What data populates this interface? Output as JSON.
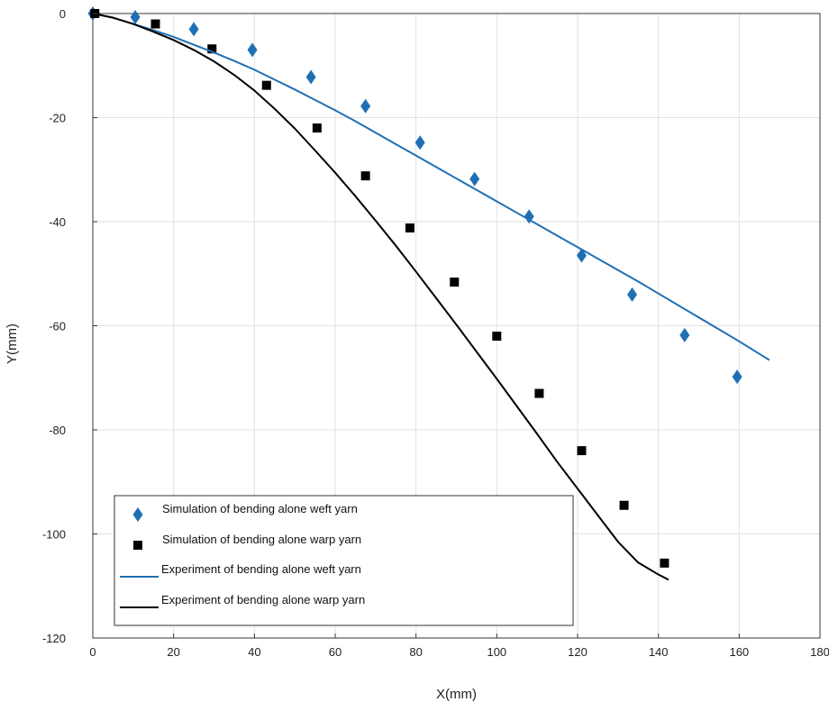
{
  "chart_data": {
    "type": "line",
    "title": "",
    "xlabel": "X(mm)",
    "ylabel": "Y(mm)",
    "xlim": [
      0,
      180
    ],
    "ylim": [
      -120,
      0
    ],
    "x_ticks": [
      0,
      20,
      40,
      60,
      80,
      100,
      120,
      140,
      160,
      180
    ],
    "y_ticks": [
      0,
      -20,
      -40,
      -60,
      -80,
      -100,
      -120
    ],
    "grid": true,
    "legend_position": "bottom-left",
    "series": [
      {
        "name": "Simulation of bending alone weft yarn",
        "kind": "scatter",
        "marker": "diamond",
        "color": "#1f6fb5",
        "x": [
          0,
          10.5,
          25,
          39.5,
          54,
          67.5,
          81,
          94.5,
          108,
          121,
          133.5,
          146.5,
          159.5
        ],
        "y": [
          0,
          -0.7,
          -3,
          -7,
          -12.2,
          -17.8,
          -24.8,
          -31.8,
          -39,
          -46.5,
          -54,
          -61.8,
          -69.8
        ]
      },
      {
        "name": "Simulation of bending alone warp yarn",
        "kind": "scatter",
        "marker": "square",
        "color": "#000000",
        "x": [
          0.5,
          15.5,
          29.5,
          43,
          55.5,
          67.5,
          78.5,
          89.5,
          100,
          110.5,
          121,
          131.5,
          141.5
        ],
        "y": [
          0,
          -2,
          -6.8,
          -13.8,
          -22,
          -31.2,
          -41.2,
          -51.6,
          -62,
          -73,
          -84,
          -94.5,
          -105.6
        ]
      },
      {
        "name": "Experiment of bending alone weft yarn",
        "kind": "line",
        "color": "#1f6fb5",
        "x": [
          0,
          5,
          10,
          15,
          20,
          25,
          30,
          35,
          40,
          45,
          50,
          55,
          60,
          65,
          70,
          75,
          80,
          85,
          90,
          95,
          100,
          105,
          110,
          115,
          120,
          125,
          130,
          135,
          140,
          145,
          150,
          155,
          160,
          165,
          167.5
        ],
        "y": [
          0,
          -0.8,
          -2,
          -3.2,
          -4.5,
          -6,
          -7.5,
          -9.1,
          -10.8,
          -12.7,
          -14.6,
          -16.6,
          -18.6,
          -20.7,
          -22.9,
          -25.1,
          -27.3,
          -29.5,
          -31.7,
          -33.9,
          -36.1,
          -38.3,
          -40.5,
          -42.7,
          -44.9,
          -47.1,
          -49.3,
          -51.5,
          -53.8,
          -56.1,
          -58.4,
          -60.7,
          -63,
          -65.4,
          -66.6
        ]
      },
      {
        "name": "Experiment of bending alone warp yarn",
        "kind": "line",
        "color": "#000000",
        "x": [
          0,
          5,
          10,
          15,
          20,
          25,
          30,
          35,
          40,
          45,
          50,
          55,
          60,
          65,
          70,
          75,
          80,
          85,
          90,
          95,
          100,
          105,
          110,
          115,
          120,
          125,
          130,
          135,
          140,
          142.5
        ],
        "y": [
          0,
          -0.8,
          -2,
          -3.5,
          -5.1,
          -7,
          -9.2,
          -11.8,
          -14.8,
          -18.3,
          -22.1,
          -26.3,
          -30.6,
          -35.1,
          -39.8,
          -44.6,
          -49.6,
          -54.7,
          -59.8,
          -65,
          -70.2,
          -75.5,
          -80.8,
          -86.2,
          -91.3,
          -96.4,
          -101.5,
          -105.5,
          -107.8,
          -108.8
        ]
      }
    ]
  }
}
